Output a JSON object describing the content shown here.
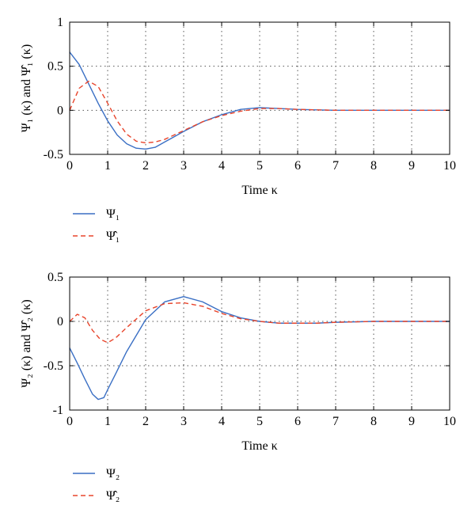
{
  "chart_data": [
    {
      "type": "line",
      "xlabel": "Time κ",
      "ylabel": "Ψ₁ (κ) and Ψ̂₁ (κ)",
      "xlim": [
        0,
        10
      ],
      "ylim": [
        -0.5,
        1
      ],
      "xticks": [
        "0",
        "1",
        "2",
        "3",
        "4",
        "5",
        "6",
        "7",
        "8",
        "9",
        "10"
      ],
      "yticks": [
        "1",
        "0.5",
        "0",
        "-0.5"
      ],
      "ytick_values": [
        1,
        0.5,
        0,
        -0.5
      ],
      "grid": true,
      "legend_position": "below",
      "series": [
        {
          "name": "Ψ₁",
          "color": "#3a6fc4",
          "style": "solid",
          "x": [
            0,
            0.25,
            0.5,
            0.75,
            1,
            1.25,
            1.5,
            1.75,
            2,
            2.25,
            2.5,
            2.75,
            3,
            3.5,
            4,
            4.5,
            5,
            5.5,
            6,
            6.5,
            7,
            8,
            9,
            10
          ],
          "y": [
            0.66,
            0.52,
            0.3,
            0.08,
            -0.12,
            -0.28,
            -0.38,
            -0.43,
            -0.44,
            -0.42,
            -0.36,
            -0.3,
            -0.24,
            -0.13,
            -0.05,
            0.01,
            0.03,
            0.02,
            0.01,
            0.005,
            0,
            0,
            0,
            0
          ]
        },
        {
          "name": "Ψ̂₁",
          "color": "#e8452c",
          "style": "dashed",
          "x": [
            0,
            0.25,
            0.5,
            0.75,
            1,
            1.25,
            1.5,
            1.75,
            2,
            2.25,
            2.5,
            2.75,
            3,
            3.5,
            4,
            4.5,
            5,
            5.5,
            6,
            6.5,
            7,
            8,
            9,
            10
          ],
          "y": [
            0,
            0.25,
            0.33,
            0.27,
            0.08,
            -0.12,
            -0.27,
            -0.35,
            -0.37,
            -0.36,
            -0.33,
            -0.28,
            -0.23,
            -0.13,
            -0.06,
            -0.01,
            0.02,
            0.02,
            0.01,
            0.005,
            0,
            0,
            0,
            0
          ]
        }
      ]
    },
    {
      "type": "line",
      "xlabel": "Time κ",
      "ylabel": "Ψ₂ (κ) and Ψ̂₂ (κ)",
      "xlim": [
        0,
        10
      ],
      "ylim": [
        -1,
        0.5
      ],
      "xticks": [
        "0",
        "1",
        "2",
        "3",
        "4",
        "5",
        "6",
        "7",
        "8",
        "9",
        "10"
      ],
      "yticks": [
        "0.5",
        "0",
        "-0.5",
        "-1"
      ],
      "ytick_values": [
        0.5,
        0,
        -0.5,
        -1
      ],
      "grid": true,
      "legend_position": "below",
      "series": [
        {
          "name": "Ψ₂",
          "color": "#3a6fc4",
          "style": "solid",
          "x": [
            0,
            0.2,
            0.4,
            0.6,
            0.75,
            0.9,
            1,
            1.2,
            1.5,
            2,
            2.5,
            3,
            3.5,
            4,
            4.5,
            5,
            5.5,
            6,
            6.5,
            7,
            8,
            9,
            10
          ],
          "y": [
            -0.3,
            -0.47,
            -0.65,
            -0.82,
            -0.88,
            -0.86,
            -0.77,
            -0.6,
            -0.34,
            0.02,
            0.22,
            0.28,
            0.22,
            0.11,
            0.04,
            0,
            -0.02,
            -0.02,
            -0.02,
            -0.01,
            0,
            0,
            0
          ]
        },
        {
          "name": "Ψ̂₂",
          "color": "#e8452c",
          "style": "dashed",
          "x": [
            0,
            0.2,
            0.4,
            0.6,
            0.8,
            1,
            1.2,
            1.5,
            2,
            2.5,
            3,
            3.5,
            4,
            4.5,
            5,
            5.5,
            6,
            6.5,
            7,
            8,
            9,
            10
          ],
          "y": [
            0,
            0.08,
            0.04,
            -0.1,
            -0.2,
            -0.24,
            -0.19,
            -0.07,
            0.12,
            0.2,
            0.21,
            0.17,
            0.09,
            0.03,
            0,
            -0.02,
            -0.02,
            -0.02,
            -0.01,
            0,
            0,
            0
          ]
        }
      ]
    }
  ]
}
